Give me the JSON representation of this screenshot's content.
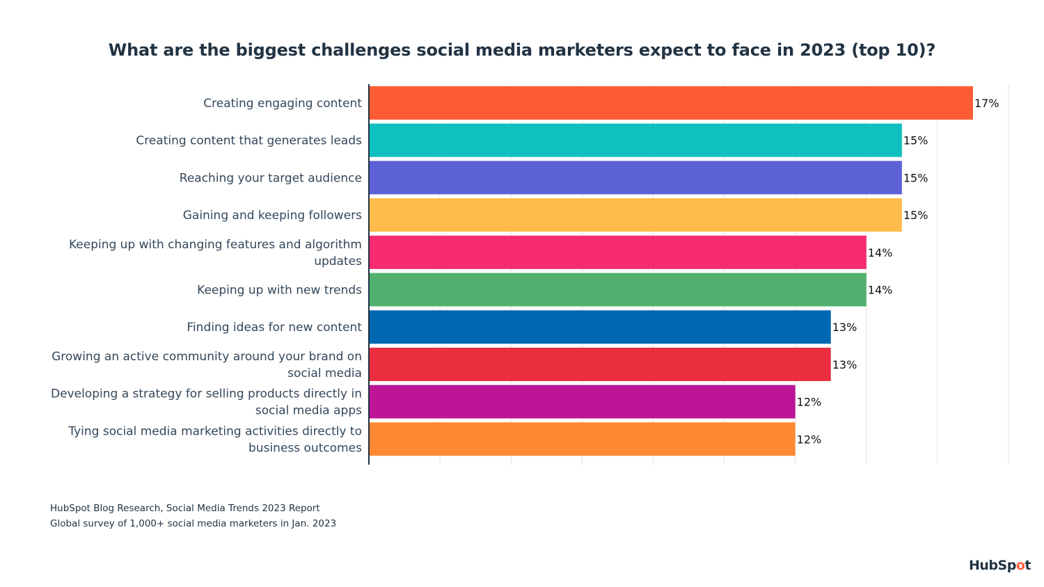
{
  "chart_data": {
    "type": "bar",
    "orientation": "horizontal",
    "title": "What are the biggest challenges social media marketers expect to face in 2023 (top 10)?",
    "xlabel": "",
    "ylabel": "",
    "xlim": [
      0,
      18
    ],
    "x_grid_step": 2,
    "grid": true,
    "value_suffix": "%",
    "categories": [
      "Creating engaging content",
      "Creating content that generates leads",
      "Reaching your target audience",
      "Gaining and keeping followers",
      "Keeping up with changing features and algorithm updates",
      "Keeping up with new trends",
      "Finding ideas for new content",
      "Growing an active community around your brand on social media",
      "Developing a strategy for selling products directly in social media apps",
      "Tying social media marketing activities directly to business outcomes"
    ],
    "category_lines": [
      [
        "Creating engaging content"
      ],
      [
        "Creating content that generates leads"
      ],
      [
        "Reaching your target audience"
      ],
      [
        "Gaining and keeping followers"
      ],
      [
        "Keeping up with changing features and algorithm",
        "updates"
      ],
      [
        "Keeping up with new trends"
      ],
      [
        "Finding ideas for new content"
      ],
      [
        "Growing an active community around your brand on",
        "social media"
      ],
      [
        "Developing a strategy for selling products directly in",
        "social media apps"
      ],
      [
        "Tying social media marketing activities directly to",
        "business outcomes"
      ]
    ],
    "values": [
      17,
      15,
      15,
      15,
      14,
      14,
      13,
      13,
      12,
      12
    ],
    "data_labels": [
      "17%",
      "15%",
      "15%",
      "15%",
      "14%",
      "14%",
      "13%",
      "13%",
      "12%",
      "12%"
    ],
    "colors": [
      "#ff5c35",
      "#10bfbf",
      "#5c62d6",
      "#ffbc4b",
      "#f72b72",
      "#51b06d",
      "#0068b1",
      "#ea2d3f",
      "#bc1595",
      "#ff8933"
    ]
  },
  "footer": {
    "source_line1": "HubSpot Blog Research, Social Media Trends 2023 Report",
    "source_line2": "Global survey of 1,000+ social media marketers in Jan. 2023"
  },
  "logo": {
    "part1": "HubSp",
    "part2": "o",
    "part3": "t"
  }
}
